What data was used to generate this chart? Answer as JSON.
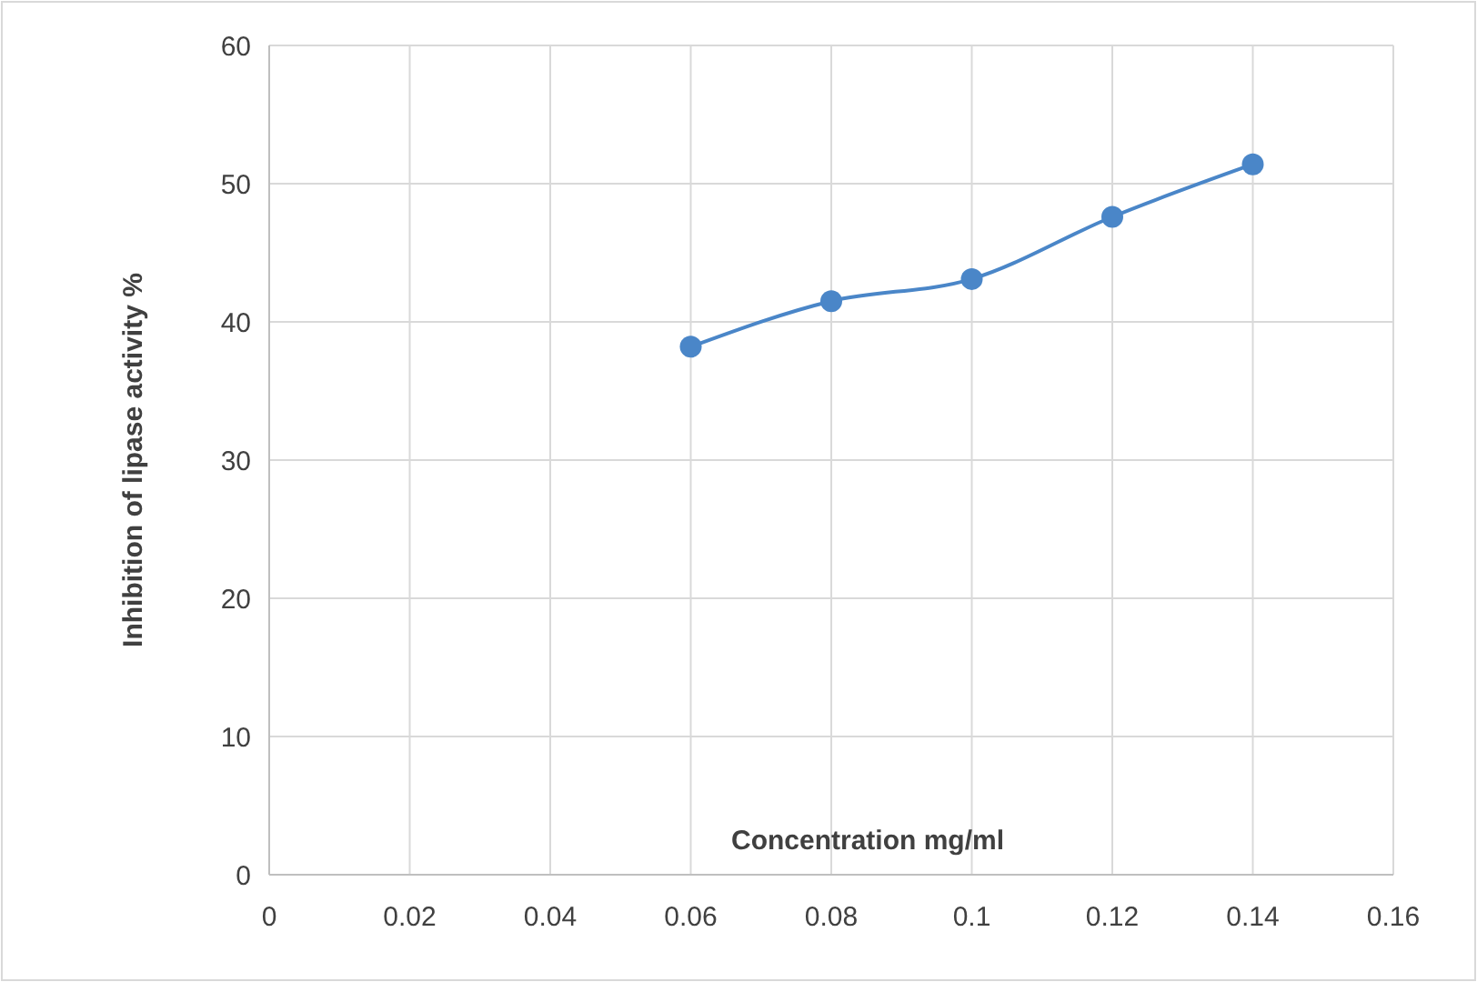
{
  "chart_data": {
    "type": "line",
    "xlabel": "Concentration mg/ml",
    "ylabel": "Inhibition of  lipase activity %",
    "x": [
      0.06,
      0.08,
      0.1,
      0.12,
      0.14
    ],
    "series": [
      {
        "color": "#4a86c8",
        "values": [
          38.2,
          41.5,
          43.1,
          47.6,
          51.4
        ]
      }
    ],
    "xlim": [
      0,
      0.16
    ],
    "xticks": [
      0,
      0.02,
      0.04,
      0.06,
      0.08,
      0.1,
      0.12,
      0.14,
      0.16
    ],
    "ylim": [
      0,
      60
    ],
    "yticks": [
      0,
      10,
      20,
      30,
      40,
      50,
      60
    ],
    "grid": true,
    "marker": "circle",
    "line_style": "solid"
  }
}
